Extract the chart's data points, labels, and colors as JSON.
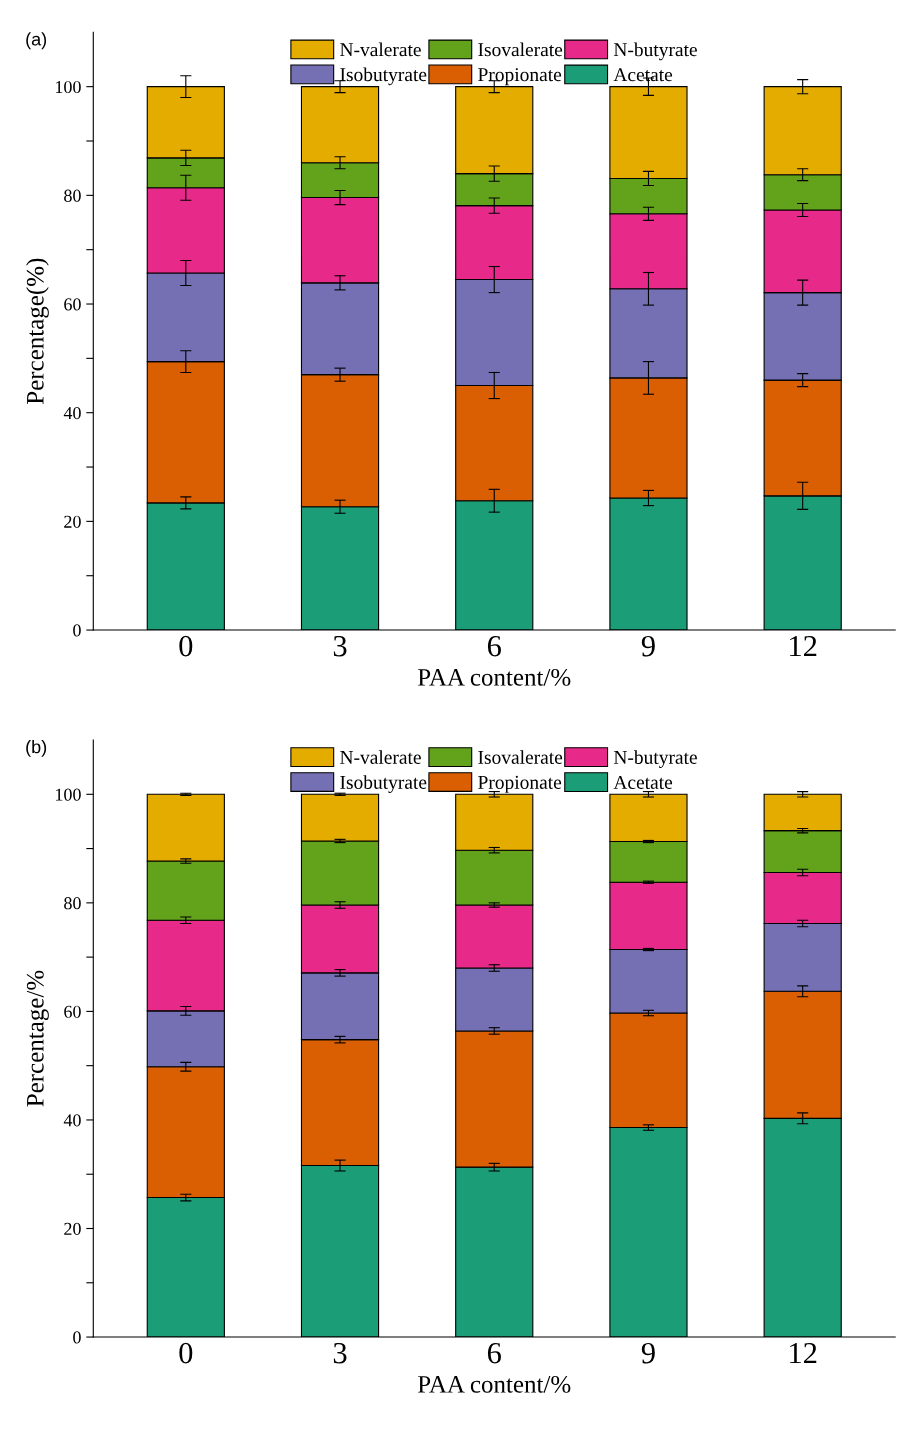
{
  "chart_data": [
    {
      "type": "bar",
      "stacked": true,
      "xlabel": "PAA content/%",
      "ylabel": "Percentage(%)",
      "annotations": [
        "(a)"
      ],
      "categories": [
        "0",
        "3",
        "6",
        "9",
        "12"
      ],
      "ylim": [
        0,
        110
      ],
      "yticks": [
        0,
        {
          "value": 10,
          "label": null
        },
        20,
        {
          "value": 30,
          "label": null
        },
        40,
        {
          "value": 50,
          "label": null
        },
        60,
        {
          "value": 70,
          "label": null
        },
        80,
        {
          "value": 90,
          "label": null
        },
        100
      ],
      "grid": false,
      "legend": "top",
      "series": [
        {
          "name": "Acetate",
          "color": "#1b9e77",
          "values": [
            23.4,
            22.7,
            23.8,
            24.3,
            24.7
          ],
          "errors": [
            1.1,
            1.2,
            2.1,
            1.4,
            2.5
          ]
        },
        {
          "name": "Propionate",
          "color": "#d95f02",
          "values": [
            26.0,
            24.3,
            21.2,
            22.1,
            21.3
          ],
          "errors": [
            2.0,
            1.2,
            2.4,
            3.0,
            1.2
          ]
        },
        {
          "name": "Isobutyrate",
          "color": "#7570b3",
          "values": [
            16.3,
            16.9,
            19.5,
            16.4,
            16.1
          ],
          "errors": [
            2.3,
            1.3,
            2.4,
            3.0,
            2.3
          ]
        },
        {
          "name": "N-butyrate",
          "color": "#e7298a",
          "values": [
            15.7,
            15.7,
            13.6,
            13.8,
            15.2
          ],
          "errors": [
            2.3,
            1.3,
            1.4,
            1.2,
            1.2
          ]
        },
        {
          "name": "Isovalerate",
          "color": "#63a31c",
          "values": [
            5.5,
            6.4,
            5.9,
            6.5,
            6.5
          ],
          "errors": [
            1.4,
            1.1,
            1.4,
            1.3,
            1.1
          ]
        },
        {
          "name": "N-valerate",
          "color": "#e5ac00",
          "values": [
            13.1,
            14.0,
            16.0,
            16.9,
            16.2
          ],
          "errors": [
            2.0,
            1.1,
            1.1,
            1.6,
            1.3
          ]
        }
      ]
    },
    {
      "type": "bar",
      "stacked": true,
      "xlabel": "PAA content/%",
      "ylabel": "Percentage/%",
      "annotations": [
        "(b)"
      ],
      "categories": [
        "0",
        "3",
        "6",
        "9",
        "12"
      ],
      "ylim": [
        0,
        110
      ],
      "yticks": [
        0,
        {
          "value": 10,
          "label": null
        },
        20,
        {
          "value": 30,
          "label": null
        },
        40,
        {
          "value": 50,
          "label": null
        },
        60,
        {
          "value": 70,
          "label": null
        },
        80,
        {
          "value": 90,
          "label": null
        },
        100
      ],
      "grid": false,
      "legend": "top",
      "series": [
        {
          "name": "Acetate",
          "color": "#1b9e77",
          "values": [
            25.7,
            31.6,
            31.3,
            38.6,
            40.3
          ],
          "errors": [
            0.6,
            1.0,
            0.7,
            0.5,
            1.0
          ]
        },
        {
          "name": "Propionate",
          "color": "#d95f02",
          "values": [
            24.1,
            23.2,
            25.1,
            21.1,
            23.4
          ],
          "errors": [
            0.8,
            0.6,
            0.6,
            0.5,
            1.0
          ]
        },
        {
          "name": "Isobutyrate",
          "color": "#7570b3",
          "values": [
            10.3,
            12.3,
            11.6,
            11.7,
            12.5
          ],
          "errors": [
            0.8,
            0.6,
            0.6,
            0.2,
            0.6
          ]
        },
        {
          "name": "N-butyrate",
          "color": "#e7298a",
          "values": [
            16.7,
            12.5,
            11.6,
            12.4,
            9.4
          ],
          "errors": [
            0.6,
            0.6,
            0.4,
            0.2,
            0.6
          ]
        },
        {
          "name": "Isovalerate",
          "color": "#63a31c",
          "values": [
            10.9,
            11.8,
            10.1,
            7.5,
            7.7
          ],
          "errors": [
            0.4,
            0.3,
            0.5,
            0.2,
            0.4
          ]
        },
        {
          "name": "N-valerate",
          "color": "#e5ac00",
          "values": [
            12.3,
            8.6,
            10.3,
            8.7,
            6.7
          ],
          "errors": [
            0.2,
            0.2,
            0.5,
            0.5,
            0.5
          ]
        }
      ]
    }
  ]
}
